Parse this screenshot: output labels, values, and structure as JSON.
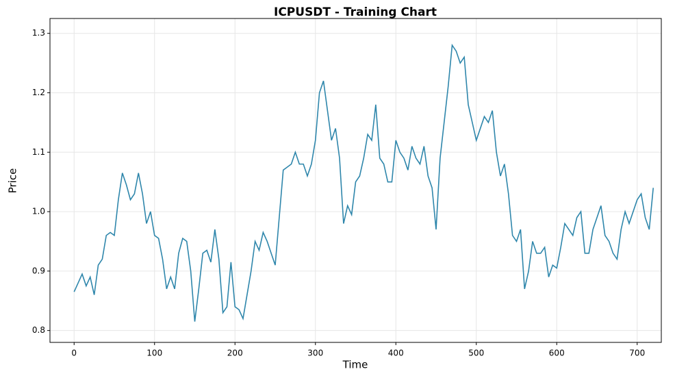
{
  "chart_data": {
    "type": "line",
    "title": "ICPUSDT - Training Chart",
    "x_label": "Time",
    "y_label": "Price",
    "x": [
      0,
      5,
      10,
      15,
      20,
      25,
      30,
      35,
      40,
      45,
      50,
      55,
      60,
      65,
      70,
      75,
      80,
      85,
      90,
      95,
      100,
      105,
      110,
      115,
      120,
      125,
      130,
      135,
      140,
      145,
      150,
      155,
      160,
      165,
      170,
      175,
      180,
      185,
      190,
      195,
      200,
      205,
      210,
      215,
      220,
      225,
      230,
      235,
      240,
      245,
      250,
      255,
      260,
      265,
      270,
      275,
      280,
      285,
      290,
      295,
      300,
      305,
      310,
      315,
      320,
      325,
      330,
      335,
      340,
      345,
      350,
      355,
      360,
      365,
      370,
      375,
      380,
      385,
      390,
      395,
      400,
      405,
      410,
      415,
      420,
      425,
      430,
      435,
      440,
      445,
      450,
      455,
      460,
      465,
      470,
      475,
      480,
      485,
      490,
      495,
      500,
      505,
      510,
      515,
      520,
      525,
      530,
      535,
      540,
      545,
      550,
      555,
      560,
      565,
      570,
      575,
      580,
      585,
      590,
      595,
      600,
      605,
      610,
      615,
      620,
      625,
      630,
      635,
      640,
      645,
      650,
      655,
      660,
      665,
      670,
      675,
      680,
      685,
      690,
      695,
      700,
      705,
      710,
      715,
      720
    ],
    "series": [
      {
        "name": "ICPUSDT",
        "color": "#2e86ab",
        "values": [
          0.865,
          0.88,
          0.895,
          0.875,
          0.89,
          0.86,
          0.91,
          0.92,
          0.96,
          0.965,
          0.96,
          1.02,
          1.065,
          1.045,
          1.02,
          1.03,
          1.065,
          1.03,
          0.98,
          1.0,
          0.96,
          0.955,
          0.92,
          0.87,
          0.89,
          0.87,
          0.93,
          0.955,
          0.95,
          0.9,
          0.815,
          0.87,
          0.93,
          0.935,
          0.915,
          0.97,
          0.92,
          0.83,
          0.84,
          0.915,
          0.84,
          0.835,
          0.82,
          0.86,
          0.9,
          0.95,
          0.935,
          0.965,
          0.95,
          0.93,
          0.91,
          0.99,
          1.07,
          1.075,
          1.08,
          1.1,
          1.08,
          1.08,
          1.06,
          1.08,
          1.12,
          1.2,
          1.22,
          1.17,
          1.12,
          1.14,
          1.09,
          0.98,
          1.01,
          0.995,
          1.05,
          1.06,
          1.09,
          1.13,
          1.12,
          1.18,
          1.09,
          1.08,
          1.05,
          1.05,
          1.12,
          1.1,
          1.09,
          1.07,
          1.11,
          1.09,
          1.08,
          1.11,
          1.06,
          1.04,
          0.97,
          1.09,
          1.15,
          1.21,
          1.28,
          1.27,
          1.25,
          1.26,
          1.18,
          1.15,
          1.12,
          1.14,
          1.16,
          1.15,
          1.17,
          1.1,
          1.06,
          1.08,
          1.03,
          0.96,
          0.95,
          0.97,
          0.87,
          0.9,
          0.95,
          0.93,
          0.93,
          0.94,
          0.89,
          0.91,
          0.905,
          0.94,
          0.98,
          0.97,
          0.96,
          0.99,
          1.0,
          0.93,
          0.93,
          0.97,
          0.99,
          1.01,
          0.96,
          0.95,
          0.93,
          0.92,
          0.97,
          1.0,
          0.98,
          1.0,
          1.02,
          1.03,
          0.99,
          0.97,
          1.04
        ]
      }
    ],
    "xlim": [
      -30,
      730
    ],
    "ylim": [
      0.78,
      1.325
    ],
    "xticks": [
      0,
      100,
      200,
      300,
      400,
      500,
      600,
      700
    ],
    "yticks": [
      {
        "value": 0.8,
        "label": "0.8"
      },
      {
        "value": 0.9,
        "label": "0.9"
      },
      {
        "value": 1.0,
        "label": "1.0"
      },
      {
        "value": 1.1,
        "label": "1.1"
      },
      {
        "value": 1.2,
        "label": "1.2"
      },
      {
        "value": 1.3,
        "label": "1.3"
      }
    ],
    "grid": true
  }
}
